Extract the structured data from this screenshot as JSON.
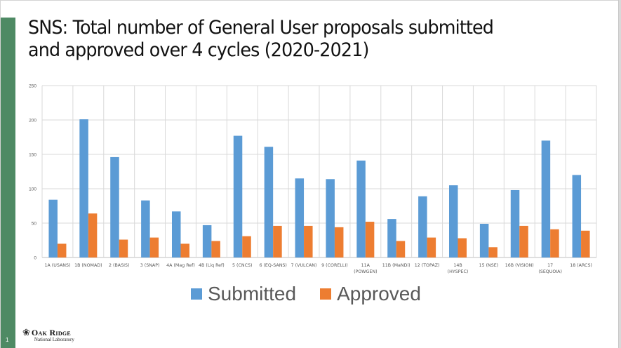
{
  "slide": {
    "title_lines": [
      "SNS: Total number of General User proposals submitted",
      "and approved over 4 cycles (2020-2021)"
    ],
    "slide_number": "1",
    "accent_color": "#4e8a64",
    "logo": {
      "icon": "oak-leaf-icon",
      "main": "Oak Ridge",
      "sub": "National Laboratory"
    }
  },
  "chart_data": {
    "type": "bar",
    "title": "SNS: Total number of General User proposals submitted and approved over 4 cycles (2020-2021)",
    "xlabel": "",
    "ylabel": "",
    "ylim": [
      0,
      250
    ],
    "yticks": [
      0,
      50,
      100,
      150,
      200,
      250
    ],
    "grid": true,
    "legend_position": "bottom",
    "categories": [
      [
        "1A (USANS)"
      ],
      [
        "1B (NOMAD)"
      ],
      [
        "2 (BASIS)"
      ],
      [
        "3 (SNAP)"
      ],
      [
        "4A (Mag Ref)"
      ],
      [
        "4B (Liq Ref)"
      ],
      [
        "5 (CNCS)"
      ],
      [
        "6 (EQ-SANS)"
      ],
      [
        "7 (VULCAN)"
      ],
      [
        "9 (CORELLI)"
      ],
      [
        "11A",
        "(POWGEN)"
      ],
      [
        "11B (MaNDi)"
      ],
      [
        "12 (TOPAZ)"
      ],
      [
        "14B",
        "(HYSPEC)"
      ],
      [
        "15 (NSE)"
      ],
      [
        "16B (VISION)"
      ],
      [
        "17",
        "(SEQUOIA)"
      ],
      [
        "18 (ARCS)"
      ]
    ],
    "series": [
      {
        "name": "Submitted",
        "color": "#5b9bd5",
        "values": [
          84,
          201,
          146,
          83,
          67,
          47,
          177,
          161,
          115,
          114,
          141,
          56,
          89,
          105,
          49,
          98,
          170,
          120
        ]
      },
      {
        "name": "Approved",
        "color": "#ed7d31",
        "values": [
          20,
          64,
          26,
          29,
          20,
          24,
          31,
          46,
          46,
          44,
          52,
          24,
          29,
          28,
          15,
          46,
          41,
          39
        ]
      }
    ]
  }
}
